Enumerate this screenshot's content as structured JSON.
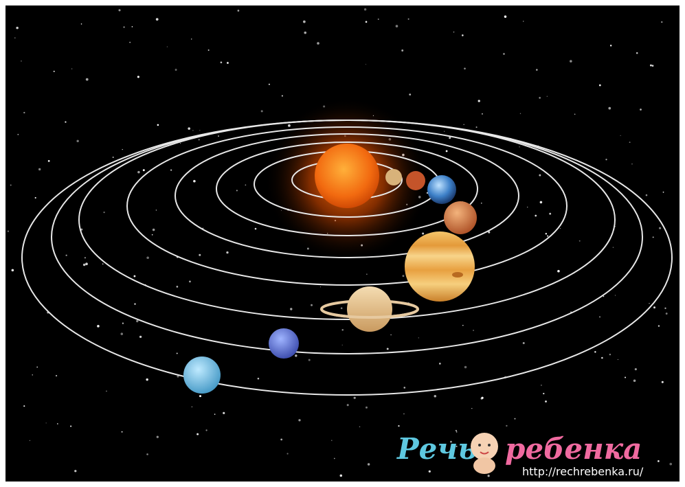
{
  "logo": {
    "word1": "Речь",
    "word2": "ребенка",
    "url": "http://rechrebenka.ru/"
  }
}
